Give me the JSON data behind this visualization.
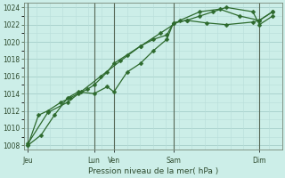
{
  "xlabel": "Pression niveau de la mer( hPa )",
  "background_color": "#cceee8",
  "grid_minor_color": "#b8ddd8",
  "grid_major_color": "#9ec8c4",
  "line_color": "#2d6a2d",
  "marker_color": "#2d6a2d",
  "vline_color": "#556655",
  "ylim": [
    1007.5,
    1024.5
  ],
  "yticks": [
    1008,
    1010,
    1012,
    1014,
    1016,
    1018,
    1020,
    1022,
    1024
  ],
  "day_labels": [
    "Jeu",
    "Lun",
    "Ven",
    "Sam",
    "Dim"
  ],
  "day_x": [
    0,
    5.0,
    6.5,
    11.0,
    17.5
  ],
  "series1_x": [
    0,
    1,
    2,
    3,
    3.8,
    5.0,
    6.0,
    6.5,
    7.5,
    8.5,
    9.5,
    10.5,
    11.0,
    12.0,
    13.5,
    15.0,
    17.0,
    17.5,
    18.5
  ],
  "series1_y": [
    1008.0,
    1009.2,
    1011.5,
    1013.5,
    1014.2,
    1014.0,
    1014.8,
    1014.2,
    1016.5,
    1017.5,
    1019.0,
    1020.3,
    1022.2,
    1022.5,
    1022.2,
    1022.0,
    1022.3,
    1022.5,
    1023.5
  ],
  "series2_x": [
    0,
    0.8,
    1.5,
    2.5,
    3.2,
    3.8,
    4.5,
    5.0,
    6.0,
    6.5,
    7.5,
    8.5,
    9.5,
    10.5,
    11.0,
    12.0,
    13.0,
    14.0,
    15.0,
    17.0,
    17.5,
    18.5
  ],
  "series2_y": [
    1008.0,
    1011.5,
    1012.0,
    1013.0,
    1013.5,
    1014.0,
    1014.5,
    1015.0,
    1016.5,
    1017.5,
    1018.5,
    1019.5,
    1020.3,
    1020.8,
    1022.2,
    1022.5,
    1023.0,
    1023.5,
    1024.0,
    1023.5,
    1022.0,
    1023.0
  ],
  "series3_x": [
    0,
    1.5,
    3.0,
    4.0,
    5.5,
    7.0,
    8.5,
    10.0,
    11.5,
    13.0,
    14.5,
    16.0,
    17.5,
    18.5
  ],
  "series3_y": [
    1008.2,
    1011.8,
    1013.0,
    1014.2,
    1016.0,
    1017.8,
    1019.5,
    1021.0,
    1022.5,
    1023.5,
    1023.8,
    1023.0,
    1022.5,
    1023.5
  ],
  "xlim": [
    -0.3,
    19.2
  ]
}
